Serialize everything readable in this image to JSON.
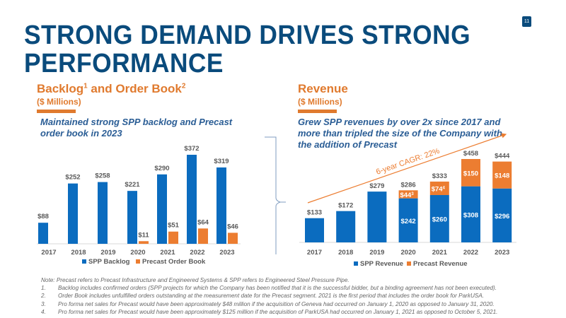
{
  "page_number": "11",
  "title": "STRONG DEMAND DRIVES STRONG PERFORMANCE",
  "left": {
    "title_part1": "Backlog",
    "sup1": "1",
    "title_part2": " and Order Book",
    "sup2": "2",
    "subtitle": "($ Millions)",
    "description": "Maintained strong SPP backlog and Precast order book in 2023"
  },
  "right": {
    "title": "Revenue",
    "subtitle": "($ Millions)",
    "description": "Grew SPP revenues by over 2x since 2017 and more than tripled the size of the Company with the addition of Precast",
    "cagr_label": "6-year CAGR: 22%"
  },
  "colors": {
    "blue": "#0b6cbf",
    "orange": "#ec7d31",
    "navy": "#0a4b7c",
    "accent": "#e07a2e"
  },
  "chart_data": [
    {
      "type": "bar",
      "title": "Backlog and Order Book ($ Millions)",
      "categories": [
        "2017",
        "2018",
        "2019",
        "2020",
        "2021",
        "2022",
        "2023"
      ],
      "series": [
        {
          "name": "SPP Backlog",
          "values": [
            88,
            252,
            258,
            221,
            290,
            372,
            319
          ],
          "labels": [
            "$88",
            "$252",
            "$258",
            "$221",
            "$290",
            "$372",
            "$319"
          ]
        },
        {
          "name": "Precast Order Book",
          "values": [
            null,
            null,
            null,
            11,
            51,
            64,
            46
          ],
          "labels": [
            "",
            "",
            "",
            "$11",
            "$51",
            "$64",
            "$46"
          ]
        }
      ],
      "legend": "bottom",
      "grid": false
    },
    {
      "type": "bar",
      "stacked": true,
      "title": "Revenue ($ Millions)",
      "categories": [
        "2017",
        "2018",
        "2019",
        "2020",
        "2021",
        "2022",
        "2023"
      ],
      "series": [
        {
          "name": "SPP Revenue",
          "values": [
            133,
            172,
            279,
            242,
            260,
            308,
            296
          ],
          "labels": [
            "$133",
            "$172",
            "$279",
            "$242",
            "$260",
            "$308",
            "$296"
          ]
        },
        {
          "name": "Precast Revenue",
          "values": [
            0,
            0,
            0,
            44,
            74,
            150,
            148
          ],
          "labels": [
            "",
            "",
            "",
            "$44",
            "$74",
            "$150",
            "$148"
          ],
          "footnotes": [
            "",
            "",
            "",
            "3",
            "4",
            "",
            ""
          ]
        }
      ],
      "totals": [
        133,
        172,
        279,
        286,
        333,
        458,
        444
      ],
      "total_labels": [
        "$133",
        "$172",
        "$279",
        "$286",
        "$333",
        "$458",
        "$444"
      ],
      "annotation": "6-year CAGR: 22%",
      "legend": "bottom",
      "grid": false
    }
  ],
  "notes": {
    "intro": "Note: Precast refers to Precast Infrastructure and Engineered Systems & SPP refers to Engineered Steel Pressure Pipe.",
    "items": [
      {
        "num": "1.",
        "text": "Backlog includes confirmed orders (SPP projects for which the Company has been notified that it is the successful bidder, but a binding agreement has not been executed)."
      },
      {
        "num": "2.",
        "text": "Order Book includes unfulfilled orders outstanding at the measurement date for the Precast segment. 2021 is the first period that includes the order book for ParkUSA."
      },
      {
        "num": "3.",
        "text": "Pro forma net sales for Precast would have been approximately $48 million if the acquisition of Geneva had occurred on January 1, 2020 as opposed to January 31, 2020."
      },
      {
        "num": "4.",
        "text": "Pro forma net sales for Precast would have been approximately $125 million if the acquisition of ParkUSA had occurred on January 1, 2021 as opposed to October 5, 2021."
      }
    ]
  }
}
